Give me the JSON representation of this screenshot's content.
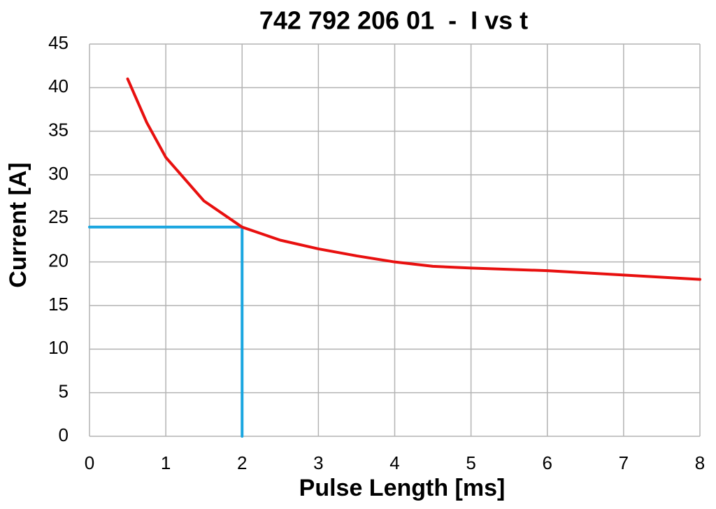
{
  "chart_data": {
    "type": "line",
    "title": "742 792 206 01  -  I vs t",
    "x_label": "Pulse Length [ms]",
    "y_label": "Current [A]",
    "xlim": [
      0,
      8
    ],
    "xticks": [
      0,
      1,
      2,
      3,
      4,
      5,
      6,
      7,
      8
    ],
    "ylim": [
      0,
      45
    ],
    "yticks": [
      0,
      5,
      10,
      15,
      20,
      25,
      30,
      35,
      40,
      45
    ],
    "grid": true,
    "series": [
      {
        "color": "#e8100f",
        "x": [
          0.5,
          0.75,
          1,
          1.5,
          2,
          2.5,
          3,
          3.5,
          4,
          4.5,
          5,
          6,
          7,
          8
        ],
        "values": [
          41,
          36,
          32,
          27,
          24,
          22.5,
          21.5,
          20.7,
          20,
          19.5,
          19.3,
          19,
          18.5,
          18
        ]
      },
      {
        "color": "#1aa6e0",
        "x": [
          0,
          2,
          2
        ],
        "values": [
          24,
          24,
          0
        ]
      }
    ]
  }
}
